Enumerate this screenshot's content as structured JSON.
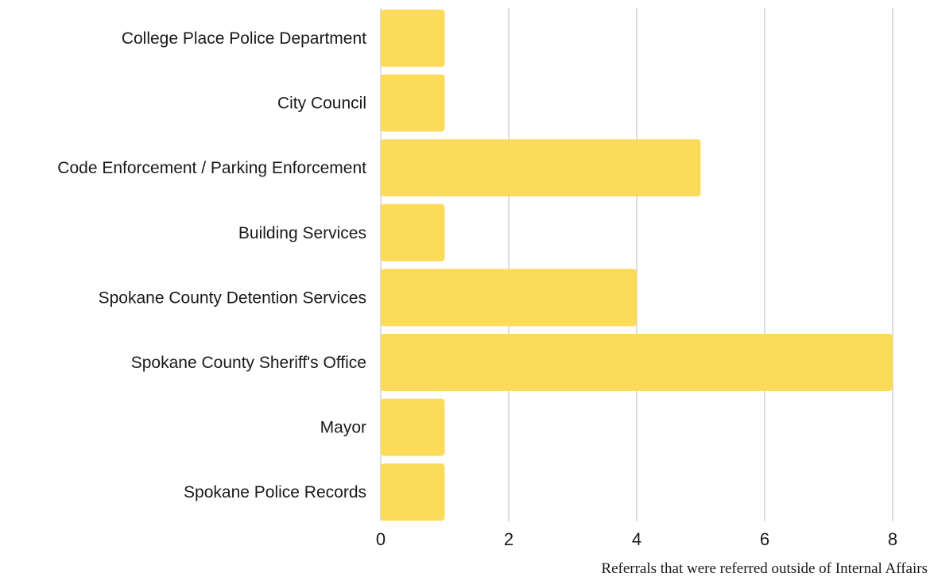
{
  "chart_data": {
    "type": "bar",
    "orientation": "horizontal",
    "categories": [
      "College Place Police Department",
      "City Council",
      "Code Enforcement / Parking Enforcement",
      "Building Services",
      "Spokane County Detention Services",
      "Spokane County Sheriff's Office",
      "Mayor",
      "Spokane Police Records"
    ],
    "values": [
      1,
      1,
      5,
      1,
      4,
      8,
      1,
      1
    ],
    "xlabel": "Referrals that were referred outside of Internal Affairs",
    "ylabel": "",
    "xlim": [
      0,
      8
    ],
    "xticks": [
      "0",
      "2",
      "4",
      "6",
      "8"
    ],
    "grid": "vertical",
    "colors": {
      "bar": "#fcdb5a",
      "grid": "#bdbdbd",
      "text": "#1a1a1a"
    }
  }
}
